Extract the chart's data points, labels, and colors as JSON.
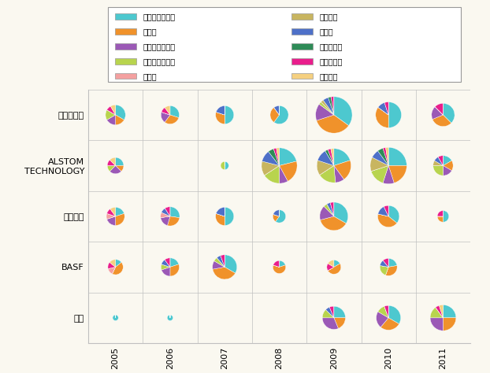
{
  "countries": [
    "アメリカ合衆国",
    "カナダ",
    "オーストラリア",
    "中華人民共和国",
    "ドイツ",
    "大韓民国",
    "ロシア",
    "デンマーク",
    "ノルウェー",
    "メキシコ"
  ],
  "colors": [
    "#4DC8CF",
    "#F0922B",
    "#9B59B6",
    "#B8D44E",
    "#F4A0A0",
    "#C8B560",
    "#4E70C8",
    "#2E8B57",
    "#E91E8C",
    "#F5D080"
  ],
  "companies": [
    "三菱重工業",
    "ALSTOM\nTECHNOLOGY",
    "関西電力",
    "BASF",
    "東芝"
  ],
  "years": [
    2005,
    2006,
    2007,
    2008,
    2009,
    2010,
    2011
  ],
  "background": "#FAF8F0",
  "data": {
    "三菱重工業": {
      "2005": {
        "total": 12,
        "slices": [
          4,
          2,
          2,
          2,
          0,
          0,
          0,
          0,
          1,
          1
        ]
      },
      "2006": {
        "total": 10,
        "slices": [
          3,
          3,
          2,
          0,
          0,
          0,
          0,
          0,
          1,
          1
        ]
      },
      "2007": {
        "total": 10,
        "slices": [
          5,
          3,
          0,
          0,
          0,
          0,
          2,
          0,
          0,
          0
        ]
      },
      "2008": {
        "total": 10,
        "slices": [
          6,
          3,
          0,
          0,
          0,
          0,
          1,
          0,
          0,
          0
        ]
      },
      "2009": {
        "total": 40,
        "slices": [
          14,
          14,
          6,
          1,
          0,
          1,
          2,
          1,
          1,
          0
        ]
      },
      "2010": {
        "total": 20,
        "slices": [
          10,
          7,
          0,
          0,
          0,
          0,
          2,
          0,
          1,
          0
        ]
      },
      "2011": {
        "total": 16,
        "slices": [
          6,
          5,
          3,
          0,
          0,
          0,
          0,
          0,
          2,
          0
        ]
      }
    },
    "ALSTOM\nTECHNOLOGY": {
      "2005": {
        "total": 8,
        "slices": [
          2,
          1,
          2,
          1,
          0,
          0,
          0,
          0,
          1,
          1
        ]
      },
      "2006": {
        "total": 0,
        "slices": [
          0,
          0,
          0,
          0,
          0,
          0,
          0,
          0,
          0,
          0
        ]
      },
      "2007": {
        "total": 2,
        "slices": [
          1,
          0,
          0,
          1,
          0,
          0,
          0,
          0,
          0,
          0
        ]
      },
      "2008": {
        "total": 38,
        "slices": [
          8,
          8,
          3,
          6,
          0,
          5,
          4,
          2,
          1,
          1
        ]
      },
      "2009": {
        "total": 35,
        "slices": [
          7,
          7,
          3,
          6,
          0,
          5,
          4,
          1,
          1,
          1
        ]
      },
      "2010": {
        "total": 40,
        "slices": [
          10,
          8,
          4,
          6,
          0,
          5,
          3,
          2,
          1,
          1
        ]
      },
      "2011": {
        "total": 12,
        "slices": [
          2,
          2,
          2,
          3,
          0,
          1,
          1,
          0,
          1,
          0
        ]
      }
    },
    "関西電力": {
      "2005": {
        "total": 10,
        "slices": [
          2,
          3,
          2,
          0,
          1,
          0,
          0,
          0,
          1,
          1
        ]
      },
      "2006": {
        "total": 11,
        "slices": [
          3,
          3,
          2,
          0,
          1,
          0,
          1,
          0,
          1,
          0
        ]
      },
      "2007": {
        "total": 10,
        "slices": [
          5,
          3,
          0,
          0,
          0,
          0,
          2,
          0,
          0,
          0
        ]
      },
      "2008": {
        "total": 5,
        "slices": [
          3,
          1,
          0,
          0,
          0,
          0,
          1,
          0,
          0,
          0
        ]
      },
      "2009": {
        "total": 24,
        "slices": [
          8,
          9,
          4,
          1,
          0,
          0,
          1,
          0,
          1,
          0
        ]
      },
      "2010": {
        "total": 14,
        "slices": [
          5,
          6,
          0,
          0,
          0,
          0,
          2,
          0,
          1,
          0
        ]
      },
      "2011": {
        "total": 4,
        "slices": [
          2,
          1,
          0,
          0,
          0,
          0,
          0,
          0,
          1,
          0
        ]
      }
    },
    "BASF": {
      "2005": {
        "total": 7,
        "slices": [
          1,
          3,
          0,
          0,
          1,
          0,
          0,
          0,
          1,
          1
        ]
      },
      "2006": {
        "total": 10,
        "slices": [
          2,
          3,
          2,
          1,
          0,
          0,
          1,
          0,
          1,
          0
        ]
      },
      "2007": {
        "total": 18,
        "slices": [
          6,
          7,
          2,
          1,
          0,
          0,
          1,
          0,
          1,
          0
        ]
      },
      "2008": {
        "total": 5,
        "slices": [
          1,
          3,
          0,
          0,
          0,
          0,
          0,
          0,
          1,
          0
        ]
      },
      "2009": {
        "total": 6,
        "slices": [
          1,
          3,
          0,
          0,
          0,
          0,
          0,
          0,
          1,
          1
        ]
      },
      "2010": {
        "total": 9,
        "slices": [
          2,
          3,
          0,
          2,
          0,
          0,
          1,
          0,
          1,
          0
        ]
      },
      "2011": {
        "total": 0,
        "slices": [
          0,
          0,
          0,
          0,
          0,
          0,
          0,
          0,
          0,
          0
        ]
      }
    },
    "東芝": {
      "2005": {
        "total": 1,
        "slices": [
          1,
          0,
          0,
          0,
          0,
          0,
          0,
          0,
          0,
          0
        ]
      },
      "2006": {
        "total": 1,
        "slices": [
          1,
          0,
          0,
          0,
          0,
          0,
          0,
          0,
          0,
          0
        ]
      },
      "2007": {
        "total": 0,
        "slices": [
          0,
          0,
          0,
          0,
          0,
          0,
          0,
          0,
          0,
          0
        ]
      },
      "2008": {
        "total": 0,
        "slices": [
          0,
          0,
          0,
          0,
          0,
          0,
          0,
          0,
          0,
          0
        ]
      },
      "2009": {
        "total": 16,
        "slices": [
          4,
          3,
          5,
          2,
          0,
          0,
          1,
          0,
          1,
          0
        ]
      },
      "2010": {
        "total": 18,
        "slices": [
          6,
          5,
          4,
          2,
          0,
          0,
          0,
          0,
          1,
          0
        ]
      },
      "2011": {
        "total": 20,
        "slices": [
          5,
          5,
          5,
          3,
          0,
          0,
          0,
          0,
          1,
          1
        ]
      }
    }
  }
}
